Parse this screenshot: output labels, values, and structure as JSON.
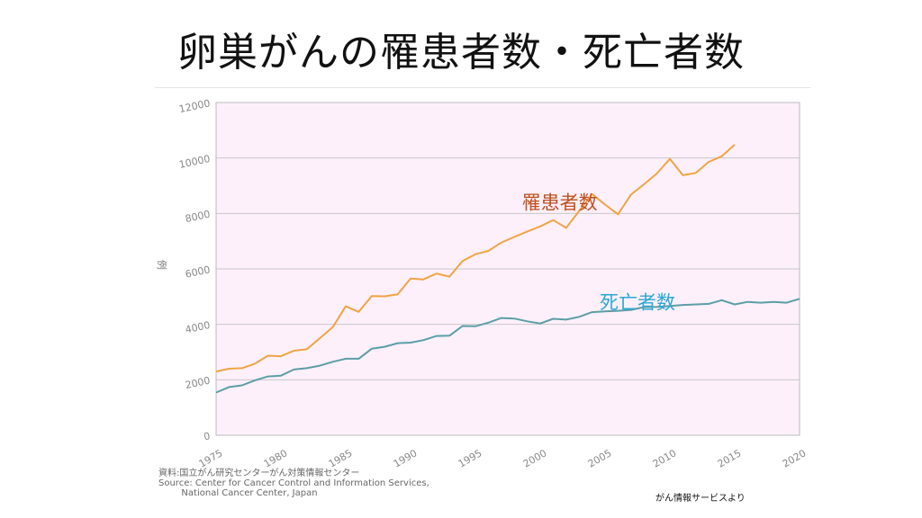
{
  "title": "卵巣がんの罹患者数・死亡者数",
  "chart_data": {
    "type": "line",
    "title": "",
    "xlabel": "",
    "ylabel": "例",
    "xlim": [
      1975,
      2020
    ],
    "ylim": [
      0,
      12000
    ],
    "xticks": [
      "1975",
      "1980",
      "1985",
      "1990",
      "1995",
      "2000",
      "2005",
      "2010",
      "2015",
      "2020"
    ],
    "yticks": [
      "0",
      "2000",
      "4000",
      "6000",
      "8000",
      "10000",
      "12000"
    ],
    "grid": true,
    "series": [
      {
        "name": "罹患者数",
        "color": "#F0A443",
        "label_color": "#C0501E",
        "x": [
          1975,
          1976,
          1977,
          1978,
          1979,
          1980,
          1981,
          1982,
          1983,
          1984,
          1985,
          1986,
          1987,
          1988,
          1989,
          1990,
          1991,
          1992,
          1993,
          1994,
          1995,
          1996,
          1997,
          1998,
          1999,
          2000,
          2001,
          2002,
          2003,
          2004,
          2005,
          2006,
          2007,
          2008,
          2009,
          2010,
          2011,
          2012,
          2013,
          2014,
          2015
        ],
        "y": [
          2300,
          2400,
          2420,
          2580,
          2870,
          2850,
          3050,
          3100,
          3500,
          3900,
          4650,
          4450,
          5020,
          5010,
          5080,
          5650,
          5620,
          5830,
          5720,
          6280,
          6530,
          6650,
          6950,
          7150,
          7350,
          7530,
          7760,
          7480,
          8090,
          8700,
          8320,
          7970,
          8680,
          9050,
          9440,
          9970,
          9380,
          9460,
          9860,
          10060,
          10480
        ]
      },
      {
        "name": "死亡者数",
        "color": "#5B9EA6",
        "label_color": "#2BA8D6",
        "x": [
          1975,
          1976,
          1977,
          1978,
          1979,
          1980,
          1981,
          1982,
          1983,
          1984,
          1985,
          1986,
          1987,
          1988,
          1989,
          1990,
          1991,
          1992,
          1993,
          1994,
          1995,
          1996,
          1997,
          1998,
          1999,
          2000,
          2001,
          2002,
          2003,
          2004,
          2005,
          2006,
          2007,
          2008,
          2009,
          2010,
          2011,
          2012,
          2013,
          2014,
          2015,
          2016,
          2017,
          2018,
          2019,
          2020
        ],
        "y": [
          1540,
          1740,
          1800,
          1980,
          2120,
          2150,
          2370,
          2420,
          2510,
          2650,
          2760,
          2760,
          3120,
          3190,
          3320,
          3340,
          3430,
          3580,
          3590,
          3940,
          3930,
          4060,
          4230,
          4210,
          4110,
          4030,
          4200,
          4170,
          4270,
          4440,
          4470,
          4490,
          4520,
          4620,
          4630,
          4660,
          4700,
          4720,
          4740,
          4870,
          4720,
          4810,
          4780,
          4810,
          4780,
          4920
        ]
      }
    ],
    "series_labels": [
      {
        "text": "罹患者数",
        "at": [
          2001.5,
          8150
        ]
      },
      {
        "text": "死亡者数",
        "at": [
          2007.5,
          4550
        ]
      }
    ]
  },
  "source": {
    "line1": "資料:国立がん研究センターがん対策情報センター",
    "line2": "Source: Center for Cancer Control and Information Services,",
    "line3": "        National Cancer Center, Japan"
  },
  "credit": "がん情報サービスより",
  "colors": {
    "plot_background": "#FDF0FB",
    "grid": "#C8C8C8",
    "frame": "#BBBBBB"
  }
}
